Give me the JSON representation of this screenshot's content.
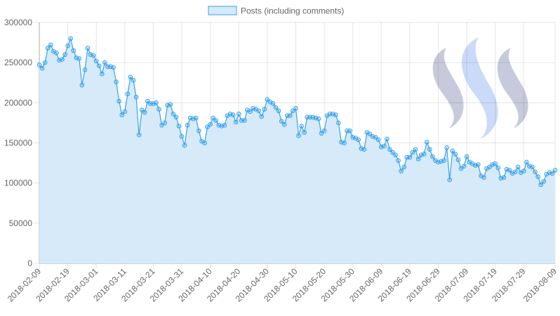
{
  "chart_data": {
    "type": "area",
    "title": "",
    "xlabel": "",
    "ylabel": "",
    "x_start": "2018-02-09",
    "x_end": "2018-08-09",
    "x_tick_labels": [
      "2018-02-09",
      "2018-02-19",
      "2018-03-01",
      "2018-03-11",
      "2018-03-21",
      "2018-03-31",
      "2018-04-10",
      "2018-04-20",
      "2018-04-30",
      "2018-05-10",
      "2018-05-20",
      "2018-05-30",
      "2018-06-09",
      "2018-06-19",
      "2018-06-29",
      "2018-07-09",
      "2018-07-19",
      "2018-07-29",
      "2018-08-09"
    ],
    "y_tick_labels": [
      "0",
      "50000",
      "100000",
      "150000",
      "200000",
      "250000",
      "300000"
    ],
    "ylim": [
      0,
      300000
    ],
    "grid": true,
    "legend_position": "top",
    "series": [
      {
        "name": "Posts (including comments)",
        "color": "#36a2eb",
        "fill": "#d6eafa",
        "values": [
          247000,
          243000,
          250000,
          268000,
          272000,
          264000,
          262000,
          253000,
          254000,
          260000,
          271000,
          280000,
          265000,
          256000,
          255000,
          222000,
          241000,
          268000,
          260000,
          259000,
          252000,
          246000,
          236000,
          250000,
          245000,
          245000,
          244000,
          226000,
          202000,
          185000,
          189000,
          211000,
          232000,
          228000,
          207000,
          160000,
          191000,
          188000,
          202000,
          199000,
          199000,
          200000,
          192000,
          172000,
          175000,
          197000,
          198000,
          186000,
          182000,
          171000,
          158000,
          147000,
          172000,
          181000,
          180000,
          181000,
          165000,
          152000,
          150000,
          170000,
          173000,
          181000,
          178000,
          172000,
          171000,
          172000,
          184000,
          186000,
          185000,
          176000,
          186000,
          178000,
          178000,
          191000,
          189000,
          193000,
          192000,
          190000,
          183000,
          192000,
          204000,
          201000,
          199000,
          194000,
          190000,
          177000,
          173000,
          184000,
          184000,
          190000,
          193000,
          159000,
          171000,
          163000,
          182000,
          182000,
          182000,
          181000,
          180000,
          162000,
          165000,
          184000,
          186000,
          186000,
          185000,
          175000,
          151000,
          150000,
          165000,
          165000,
          157000,
          156000,
          154000,
          143000,
          142000,
          163000,
          161000,
          158000,
          157000,
          154000,
          145000,
          146000,
          155000,
          142000,
          138000,
          135000,
          128000,
          115000,
          120000,
          132000,
          132000,
          138000,
          142000,
          130000,
          135000,
          136000,
          151000,
          142000,
          133000,
          128000,
          126000,
          127000,
          128000,
          144000,
          104000,
          140000,
          136000,
          129000,
          118000,
          121000,
          133000,
          126000,
          124000,
          122000,
          123000,
          109000,
          107000,
          118000,
          120000,
          123000,
          124000,
          119000,
          106000,
          107000,
          117000,
          116000,
          112000,
          114000,
          120000,
          113000,
          115000,
          126000,
          121000,
          120000,
          114000,
          108000,
          98000,
          102000,
          111000,
          113000,
          112000,
          116000
        ]
      }
    ]
  },
  "watermark": {
    "icon": "steem-logo-icon",
    "colors": [
      "#bec1d6",
      "#c3d4f7",
      "#bec1d6"
    ]
  }
}
